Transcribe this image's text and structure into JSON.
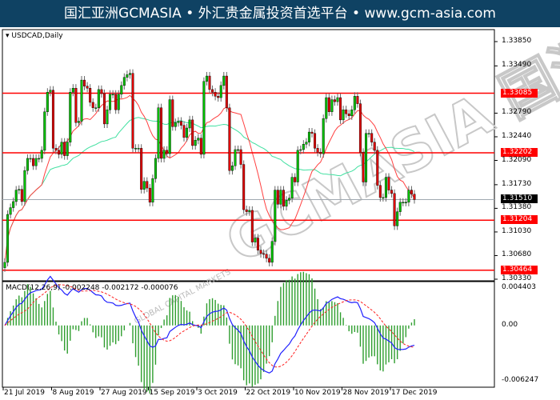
{
  "header": {
    "title": "国汇亚洲GCMASIA • 外汇贵金属投资首选平台 • www.gcm-asia.com"
  },
  "watermark": {
    "text": "GCMASIA 国汇亚洲",
    "sub": "GLOBAL CAPITAL MARKETS"
  },
  "colors": {
    "header_bg": "#0f4263",
    "bull": "#00c000",
    "bear": "#e00000",
    "level": "#ff0000",
    "ma_fast": "#ff4040",
    "ma_slow": "#40e0a0",
    "macd": "#2020ff",
    "signal": "#ff2020",
    "hist": "#2e9e2e"
  },
  "chart_data": {
    "type": "candlestick",
    "symbol_label": "USDCAD,Daily",
    "ylim": [
      1.3033,
      1.3385
    ],
    "y_ticks": [
      "1.33850",
      "1.33490",
      "1.32790",
      "1.32440",
      "1.32090",
      "1.31730",
      "1.31380",
      "1.31030",
      "1.30680",
      "1.30330"
    ],
    "x_ticks": [
      "21 Jul 2019",
      "8 Aug 2019",
      "27 Aug 2019",
      "15 Sep 2019",
      "3 Oct 2019",
      "22 Oct 2019",
      "10 Nov 2019",
      "28 Nov 2019",
      "17 Dec 2019"
    ],
    "levels": [
      {
        "price": 1.33085,
        "label": "1.33085"
      },
      {
        "price": 1.32202,
        "label": "1.32202"
      },
      {
        "price": 1.31204,
        "label": "1.31204"
      },
      {
        "price": 1.30464,
        "label": "1.30464"
      }
    ],
    "current_price": {
      "price": 1.3151,
      "label": "1.31510"
    },
    "closes": [
      1.3058,
      1.3129,
      1.3139,
      1.3148,
      1.3165,
      1.3166,
      1.3148,
      1.3194,
      1.3212,
      1.3212,
      1.3201,
      1.3212,
      1.3212,
      1.3224,
      1.3281,
      1.331,
      1.3313,
      1.3227,
      1.3224,
      1.3218,
      1.3236,
      1.3216,
      1.3236,
      1.331,
      1.3316,
      1.3265,
      1.3267,
      1.3328,
      1.3319,
      1.3316,
      1.3295,
      1.3287,
      1.3287,
      1.3314,
      1.3308,
      1.3263,
      1.3284,
      1.3307,
      1.3307,
      1.3284,
      1.3307,
      1.332,
      1.3332,
      1.3336,
      1.3338,
      1.3227,
      1.3227,
      1.3227,
      1.3166,
      1.3178,
      1.3168,
      1.3147,
      1.3182,
      1.3212,
      1.3287,
      1.3212,
      1.3224,
      1.3219,
      1.3299,
      1.3259,
      1.3265,
      1.3267,
      1.3261,
      1.3243,
      1.3257,
      1.3269,
      1.3231,
      1.3239,
      1.3242,
      1.3218,
      1.3326,
      1.3334,
      1.3314,
      1.331,
      1.3304,
      1.3302,
      1.332,
      1.3334,
      1.3287,
      1.3194,
      1.3201,
      1.3225,
      1.3225,
      1.3203,
      1.3136,
      1.3133,
      1.3135,
      1.3088,
      1.3094,
      1.3076,
      1.3071,
      1.307,
      1.3064,
      1.3058,
      1.3089,
      1.3165,
      1.3144,
      1.3165,
      1.3141,
      1.315,
      1.3153,
      1.3184,
      1.3177,
      1.3224,
      1.3225,
      1.3233,
      1.3236,
      1.3251,
      1.3249,
      1.3227,
      1.3221,
      1.3219,
      1.3271,
      1.3302,
      1.3281,
      1.3299,
      1.3296,
      1.3302,
      1.3269,
      1.3284,
      1.3278,
      1.3275,
      1.3284,
      1.3304,
      1.3293,
      1.3221,
      1.3177,
      1.3249,
      1.3249,
      1.3236,
      1.3224,
      1.3172,
      1.3154,
      1.3154,
      1.3184,
      1.3165,
      1.316,
      1.3112,
      1.3133,
      1.3147,
      1.3147,
      1.3147,
      1.3165,
      1.3159,
      1.3151
    ],
    "indicator": {
      "label": "MACD(12,26,9) -0.002248 -0.002172 -0.000076",
      "ylim": [
        -0.006247,
        0.004403
      ],
      "y_ticks": [
        "0.004403",
        "0.00",
        "-0.006247"
      ]
    }
  }
}
